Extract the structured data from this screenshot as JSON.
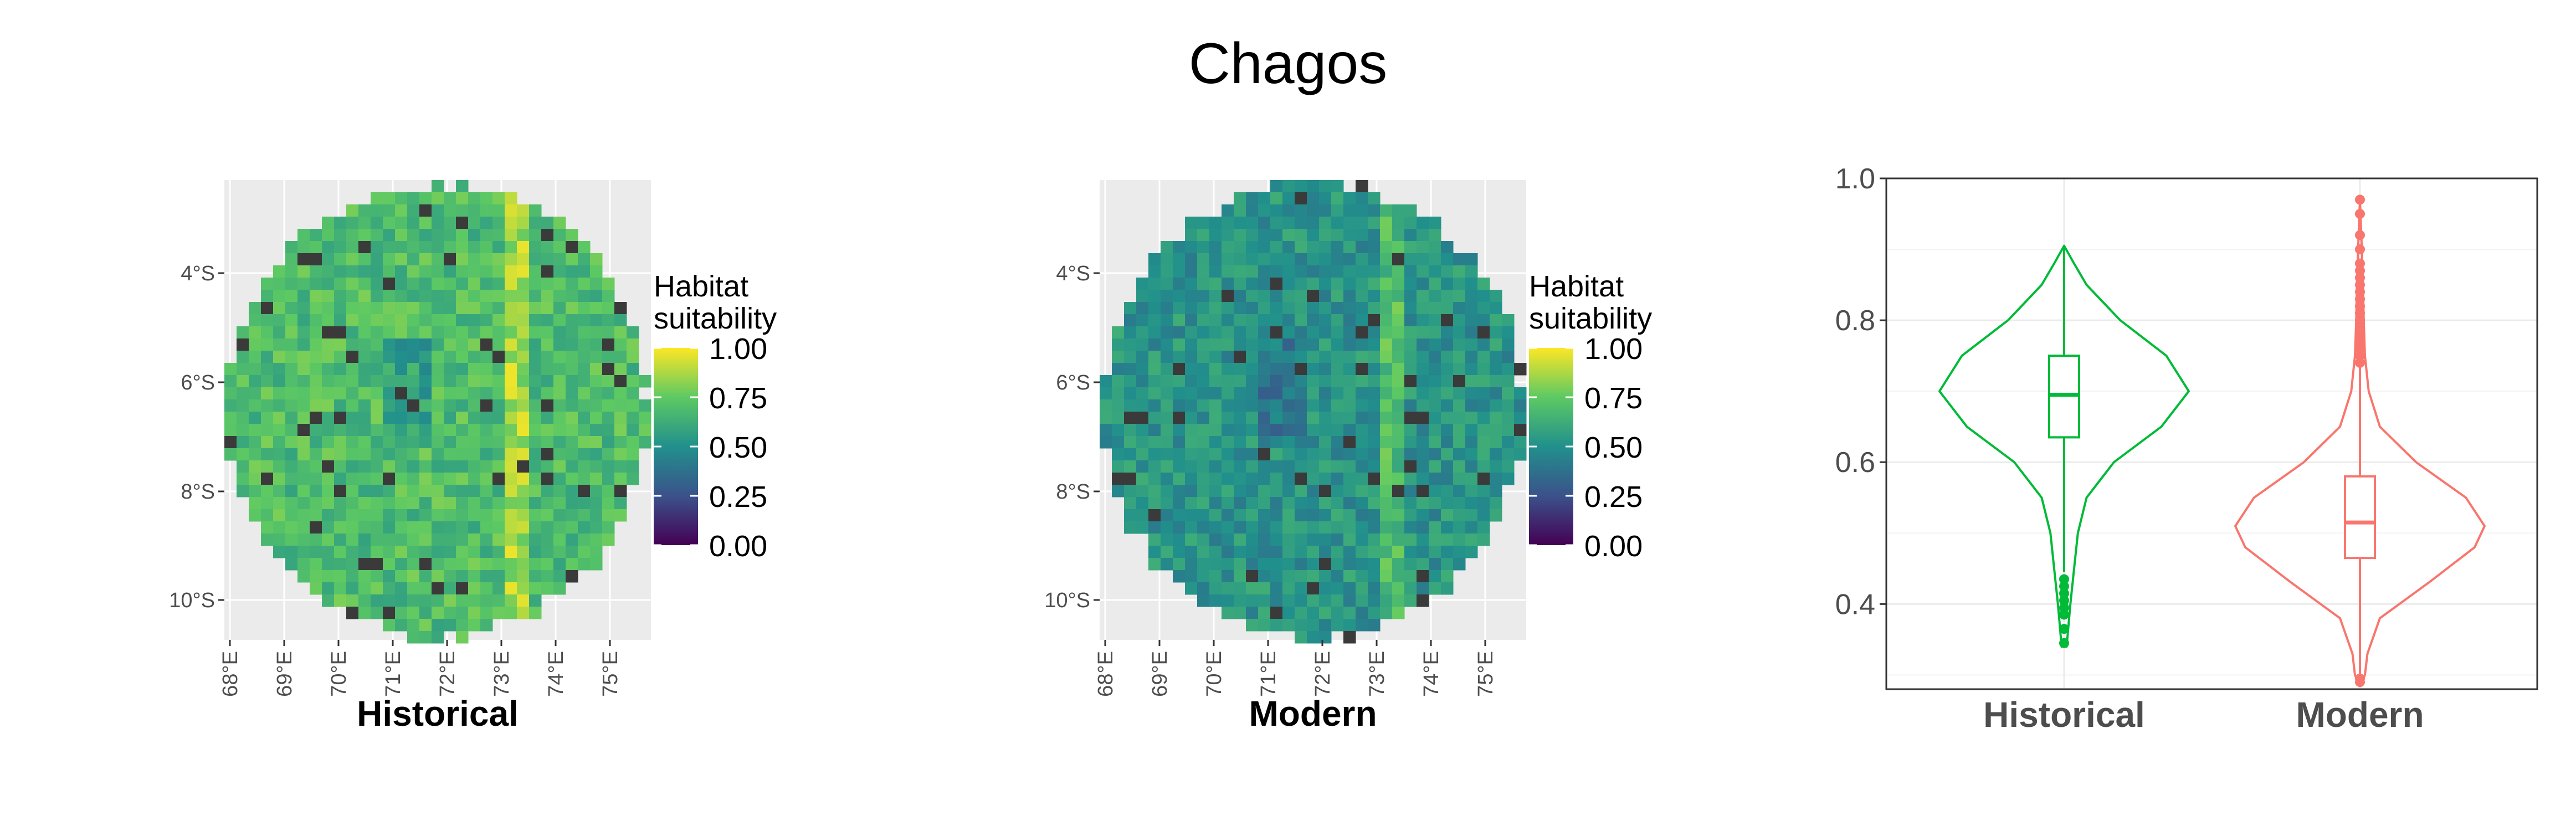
{
  "title": "Chagos",
  "colors": {
    "historical": "#00BA38",
    "modern": "#F8766D",
    "land": "#3a3a3a",
    "map_bg": "#EBEBEB",
    "viridis": [
      "#440154",
      "#3B528B",
      "#21908C",
      "#5DC963",
      "#FDE725"
    ]
  },
  "maps": [
    {
      "label": "Historical",
      "legend_title": [
        "Habitat",
        "suitability"
      ],
      "legend_ticks": [
        "1.00",
        "0.75",
        "0.50",
        "0.25",
        "0.00"
      ],
      "lat_ticks": [
        "4°S",
        "6°S",
        "8°S",
        "10°S"
      ],
      "lon_ticks": [
        "68°E",
        "69°E",
        "70°E",
        "71°E",
        "72°E",
        "73°E",
        "74°E",
        "75°E"
      ],
      "mean_suitability": 0.69
    },
    {
      "label": "Modern",
      "legend_title": [
        "Habitat",
        "suitability"
      ],
      "legend_ticks": [
        "1.00",
        "0.75",
        "0.50",
        "0.25",
        "0.00"
      ],
      "lat_ticks": [
        "4°S",
        "6°S",
        "8°S",
        "10°S"
      ],
      "lon_ticks": [
        "68°E",
        "69°E",
        "70°E",
        "71°E",
        "72°E",
        "73°E",
        "74°E",
        "75°E"
      ],
      "mean_suitability": 0.52
    }
  ],
  "chart_data": {
    "type": "violin",
    "categories": [
      "Historical",
      "Modern"
    ],
    "ylim": [
      0.28,
      1.0
    ],
    "yticks": [
      "0.4",
      "0.6",
      "0.8",
      "1.0"
    ],
    "ytick_values": [
      0.4,
      0.6,
      0.8,
      1.0
    ],
    "grid": true,
    "series": [
      {
        "name": "Historical",
        "min": 0.34,
        "max": 0.905,
        "q1": 0.635,
        "median": 0.695,
        "q3": 0.75,
        "whisker_low": 0.445,
        "whisker_high": 0.905,
        "outliers": [
          0.435,
          0.425,
          0.415,
          0.405,
          0.395,
          0.385,
          0.365,
          0.345
        ],
        "density": [
          [
            0.34,
            0.02
          ],
          [
            0.4,
            0.05
          ],
          [
            0.45,
            0.08
          ],
          [
            0.5,
            0.11
          ],
          [
            0.55,
            0.18
          ],
          [
            0.6,
            0.4
          ],
          [
            0.65,
            0.78
          ],
          [
            0.7,
            1.0
          ],
          [
            0.75,
            0.82
          ],
          [
            0.8,
            0.45
          ],
          [
            0.85,
            0.18
          ],
          [
            0.88,
            0.08
          ],
          [
            0.905,
            0.0
          ]
        ]
      },
      {
        "name": "Modern",
        "min": 0.285,
        "max": 0.97,
        "q1": 0.465,
        "median": 0.515,
        "q3": 0.58,
        "whisker_low": 0.3,
        "whisker_high": 0.735,
        "outliers": [
          0.74,
          0.75,
          0.76,
          0.77,
          0.78,
          0.79,
          0.8,
          0.81,
          0.82,
          0.83,
          0.84,
          0.85,
          0.86,
          0.87,
          0.88,
          0.9,
          0.92,
          0.95,
          0.97,
          0.29,
          0.295
        ],
        "density": [
          [
            0.285,
            0.0
          ],
          [
            0.3,
            0.04
          ],
          [
            0.33,
            0.06
          ],
          [
            0.38,
            0.16
          ],
          [
            0.43,
            0.55
          ],
          [
            0.48,
            0.92
          ],
          [
            0.51,
            1.0
          ],
          [
            0.55,
            0.85
          ],
          [
            0.6,
            0.45
          ],
          [
            0.65,
            0.16
          ],
          [
            0.7,
            0.07
          ],
          [
            0.75,
            0.04
          ],
          [
            0.8,
            0.03
          ],
          [
            0.85,
            0.025
          ],
          [
            0.9,
            0.015
          ],
          [
            0.97,
            0.0
          ]
        ]
      }
    ]
  }
}
